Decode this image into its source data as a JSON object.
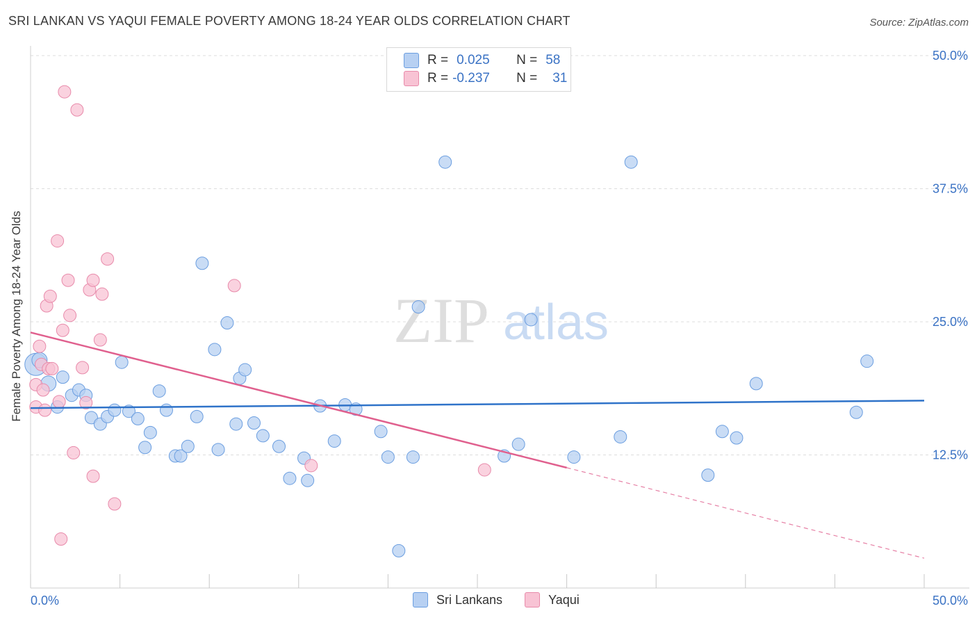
{
  "header": {
    "title": "SRI LANKAN VS YAQUI FEMALE POVERTY AMONG 18-24 YEAR OLDS CORRELATION CHART",
    "source": "Source: ZipAtlas.com"
  },
  "legend_box": {
    "rows": [
      {
        "r_label": "R =",
        "r_value": "0.025",
        "n_label": "N =",
        "n_value": "58"
      },
      {
        "r_label": "R =",
        "r_value": "-0.237",
        "n_label": "N =",
        "n_value": "31"
      }
    ]
  },
  "watermark": {
    "zip": "ZIP",
    "atlas": "atlas"
  },
  "colors": {
    "sri_fill": "#b7d0f2",
    "sri_stroke": "#6b9ee0",
    "sri_line": "#2f73c9",
    "yaqui_fill": "#f8c3d4",
    "yaqui_stroke": "#e88aaa",
    "yaqui_line": "#e0608e",
    "tick_label": "#3a72c4",
    "grid": "#dcdcdc"
  },
  "chart_data": {
    "type": "scatter",
    "title": "SRI LANKAN VS YAQUI FEMALE POVERTY AMONG 18-24 YEAR OLDS CORRELATION CHART",
    "xlabel": "",
    "ylabel": "Female Poverty Among 18-24 Year Olds",
    "xlim": [
      0,
      50
    ],
    "ylim": [
      0,
      50
    ],
    "x_tick_labels": [
      "0.0%",
      "50.0%"
    ],
    "y_ticks": [
      12.5,
      25.0,
      37.5,
      50.0
    ],
    "y_tick_labels": [
      "12.5%",
      "25.0%",
      "37.5%",
      "50.0%"
    ],
    "grid": true,
    "legend_placement": "bottom-center",
    "series": [
      {
        "name": "Sri Lankans",
        "R": 0.025,
        "N": 58,
        "trend": {
          "x": [
            0,
            50
          ],
          "y": [
            16.9,
            17.6
          ]
        },
        "points": [
          [
            0.3,
            21.0,
            16
          ],
          [
            0.5,
            21.4,
            11
          ],
          [
            1.0,
            19.2,
            11
          ],
          [
            1.5,
            17.0,
            9
          ],
          [
            1.8,
            19.8,
            9
          ],
          [
            2.3,
            18.1,
            9
          ],
          [
            2.7,
            18.6,
            9
          ],
          [
            3.1,
            18.1,
            9
          ],
          [
            3.4,
            16.0,
            9
          ],
          [
            3.9,
            15.4,
            9
          ],
          [
            4.3,
            16.1,
            9
          ],
          [
            4.7,
            16.7,
            9
          ],
          [
            5.1,
            21.2,
            9
          ],
          [
            5.5,
            16.6,
            9
          ],
          [
            6.0,
            15.9,
            9
          ],
          [
            6.4,
            13.2,
            9
          ],
          [
            6.7,
            14.6,
            9
          ],
          [
            7.2,
            18.5,
            9
          ],
          [
            7.6,
            16.7,
            9
          ],
          [
            8.1,
            12.4,
            9
          ],
          [
            8.4,
            12.4,
            9
          ],
          [
            8.8,
            13.3,
            9
          ],
          [
            9.3,
            16.1,
            9
          ],
          [
            9.6,
            30.5,
            9
          ],
          [
            10.3,
            22.4,
            9
          ],
          [
            10.5,
            13.0,
            9
          ],
          [
            11.0,
            24.9,
            9
          ],
          [
            11.5,
            15.4,
            9
          ],
          [
            11.7,
            19.7,
            9
          ],
          [
            12.0,
            20.5,
            9
          ],
          [
            12.5,
            15.5,
            9
          ],
          [
            13.0,
            14.3,
            9
          ],
          [
            13.9,
            13.3,
            9
          ],
          [
            14.5,
            10.3,
            9
          ],
          [
            15.3,
            12.2,
            9
          ],
          [
            15.5,
            10.1,
            9
          ],
          [
            16.2,
            17.1,
            9
          ],
          [
            17.0,
            13.8,
            9
          ],
          [
            17.6,
            17.2,
            9
          ],
          [
            18.2,
            16.8,
            9
          ],
          [
            19.6,
            14.7,
            9
          ],
          [
            20.0,
            12.3,
            9
          ],
          [
            20.6,
            3.5,
            9
          ],
          [
            21.4,
            12.3,
            9
          ],
          [
            21.7,
            26.4,
            9
          ],
          [
            23.2,
            40.0,
            9
          ],
          [
            26.5,
            12.4,
            9
          ],
          [
            27.3,
            13.5,
            9
          ],
          [
            28.0,
            25.2,
            9
          ],
          [
            30.4,
            12.3,
            9
          ],
          [
            33.0,
            14.2,
            9
          ],
          [
            33.6,
            40.0,
            9
          ],
          [
            37.9,
            10.6,
            9
          ],
          [
            38.7,
            14.7,
            9
          ],
          [
            39.5,
            14.1,
            9
          ],
          [
            40.6,
            19.2,
            9
          ],
          [
            46.2,
            16.5,
            9
          ],
          [
            46.8,
            21.3,
            9
          ]
        ]
      },
      {
        "name": "Yaqui",
        "R": -0.237,
        "N": 31,
        "trend": {
          "x": [
            0,
            30
          ],
          "y": [
            24.0,
            11.3
          ]
        },
        "trend_dashed": {
          "x": [
            30,
            50
          ],
          "y": [
            11.3,
            2.8
          ]
        },
        "points": [
          [
            0.3,
            19.1,
            9
          ],
          [
            0.3,
            17.0,
            9
          ],
          [
            0.5,
            22.7,
            9
          ],
          [
            0.6,
            21.0,
            9
          ],
          [
            0.7,
            18.6,
            9
          ],
          [
            0.8,
            16.7,
            9
          ],
          [
            0.9,
            26.5,
            9
          ],
          [
            1.0,
            20.6,
            9
          ],
          [
            1.1,
            27.4,
            9
          ],
          [
            1.2,
            20.6,
            9
          ],
          [
            1.5,
            32.6,
            9
          ],
          [
            1.6,
            17.5,
            9
          ],
          [
            1.7,
            4.6,
            9
          ],
          [
            1.8,
            24.2,
            9
          ],
          [
            1.9,
            46.6,
            9
          ],
          [
            2.1,
            28.9,
            9
          ],
          [
            2.2,
            25.6,
            9
          ],
          [
            2.4,
            12.7,
            9
          ],
          [
            2.6,
            44.9,
            9
          ],
          [
            2.9,
            20.7,
            9
          ],
          [
            3.1,
            17.4,
            9
          ],
          [
            3.3,
            28.0,
            9
          ],
          [
            3.5,
            28.9,
            9
          ],
          [
            3.5,
            10.5,
            9
          ],
          [
            3.9,
            23.3,
            9
          ],
          [
            4.0,
            27.6,
            9
          ],
          [
            4.3,
            30.9,
            9
          ],
          [
            4.7,
            7.9,
            9
          ],
          [
            11.4,
            28.4,
            9
          ],
          [
            15.7,
            11.5,
            9
          ],
          [
            25.4,
            11.1,
            9
          ]
        ]
      }
    ]
  }
}
